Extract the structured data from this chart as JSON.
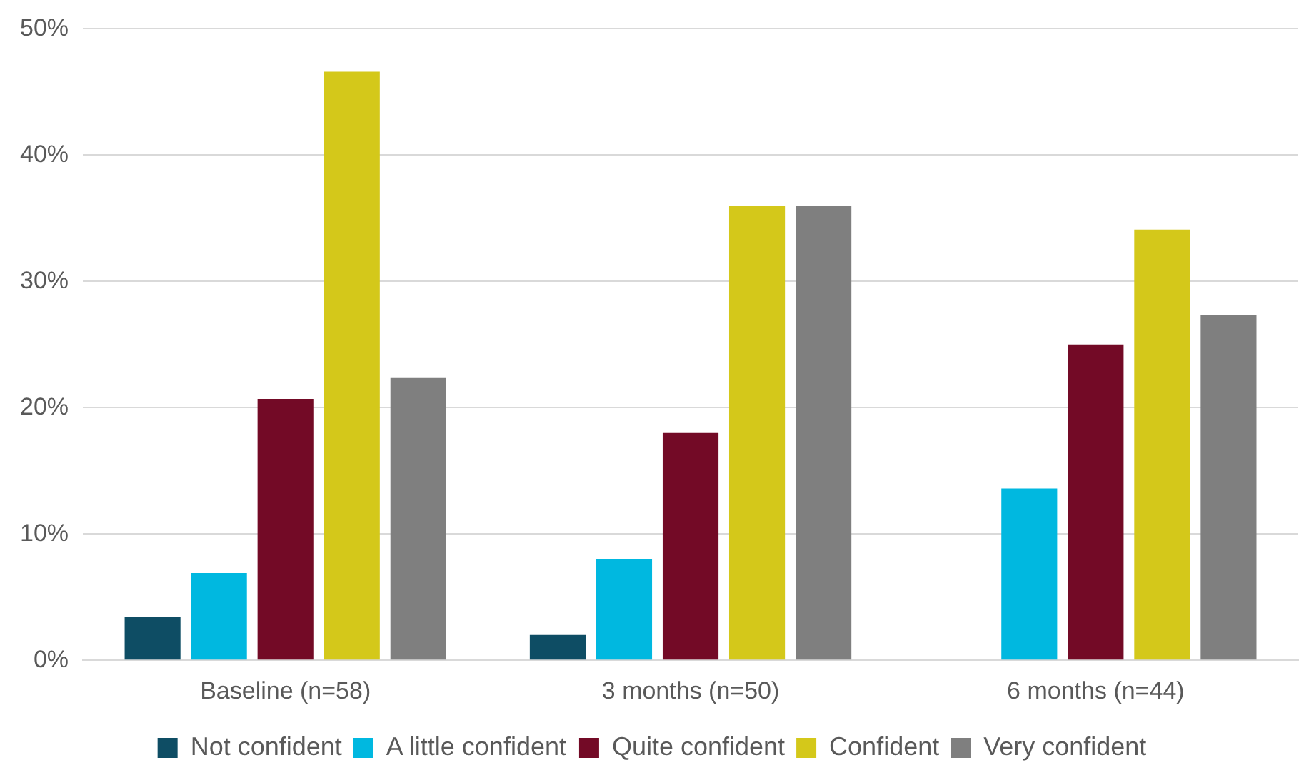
{
  "chart_data": {
    "type": "bar",
    "categories": [
      "Baseline (n=58)",
      "3 months (n=50)",
      "6 months (n=44)"
    ],
    "series": [
      {
        "name": "Not confident",
        "color": "#0e4d64",
        "values": [
          3.4,
          2.0,
          0
        ]
      },
      {
        "name": "A little confident",
        "color": "#00b8e0",
        "values": [
          6.9,
          8.0,
          13.6
        ]
      },
      {
        "name": "Quite confident",
        "color": "#730a26",
        "values": [
          20.7,
          18.0,
          25.0
        ]
      },
      {
        "name": "Confident",
        "color": "#d4c81a",
        "values": [
          46.6,
          36.0,
          34.1
        ]
      },
      {
        "name": "Very confident",
        "color": "#7f7f7f",
        "values": [
          22.4,
          36.0,
          27.3
        ]
      }
    ],
    "ylim": [
      0,
      50
    ],
    "yticks": [
      {
        "value": 0,
        "label": "0%"
      },
      {
        "value": 10,
        "label": "10%"
      },
      {
        "value": 20,
        "label": "20%"
      },
      {
        "value": 30,
        "label": "30%"
      },
      {
        "value": 40,
        "label": "40%"
      },
      {
        "value": 50,
        "label": "50%"
      }
    ],
    "grid": "y",
    "legend": "bottom"
  }
}
